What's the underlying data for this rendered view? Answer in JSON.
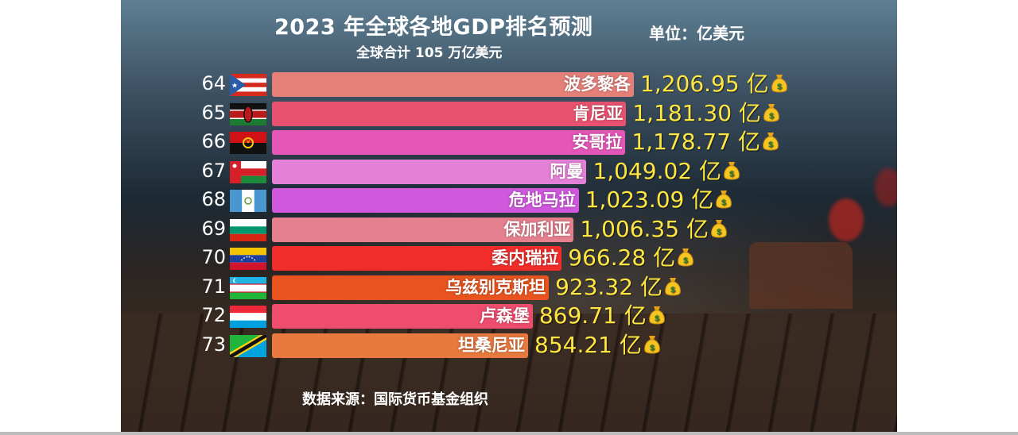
{
  "header": {
    "title": "2023 年全球各地GDP排名预测",
    "unit": "单位：亿美元",
    "subtitle": "全球合计 105 万亿美元"
  },
  "footer": {
    "source": "数据来源：国际货币基金组织"
  },
  "chart_data": {
    "type": "bar",
    "orientation": "horizontal",
    "value_suffix": "亿",
    "categories": [
      "波多黎各",
      "肯尼亚",
      "安哥拉",
      "阿曼",
      "危地马拉",
      "保加利亚",
      "委内瑞拉",
      "乌兹别克斯坦",
      "卢森堡",
      "坦桑尼亚"
    ],
    "ranks": [
      "64",
      "65",
      "66",
      "67",
      "68",
      "69",
      "70",
      "71",
      "72",
      "73"
    ],
    "value_labels": [
      "1,206.95",
      "1,181.30",
      "1,178.77",
      "1,049.02",
      "1,023.09",
      "1,006.35",
      "966.28",
      "923.32",
      "869.71",
      "854.21"
    ],
    "values": [
      1206.95,
      1181.3,
      1178.77,
      1049.02,
      1023.09,
      1006.35,
      966.28,
      923.32,
      869.71,
      854.21
    ],
    "bar_colors": [
      "#e58079",
      "#e8526e",
      "#e456b8",
      "#e580d8",
      "#cf58dc",
      "#e5808f",
      "#f02d2a",
      "#e8541f",
      "#ee4d6e",
      "#e8793f"
    ],
    "flag_icons": [
      "puerto-rico-flag-icon",
      "kenya-flag-icon",
      "angola-flag-icon",
      "oman-flag-icon",
      "guatemala-flag-icon",
      "bulgaria-flag-icon",
      "venezuela-flag-icon",
      "uzbekistan-flag-icon",
      "luxembourg-flag-icon",
      "tanzania-flag-icon"
    ],
    "value_icon": "money-bag-icon"
  }
}
